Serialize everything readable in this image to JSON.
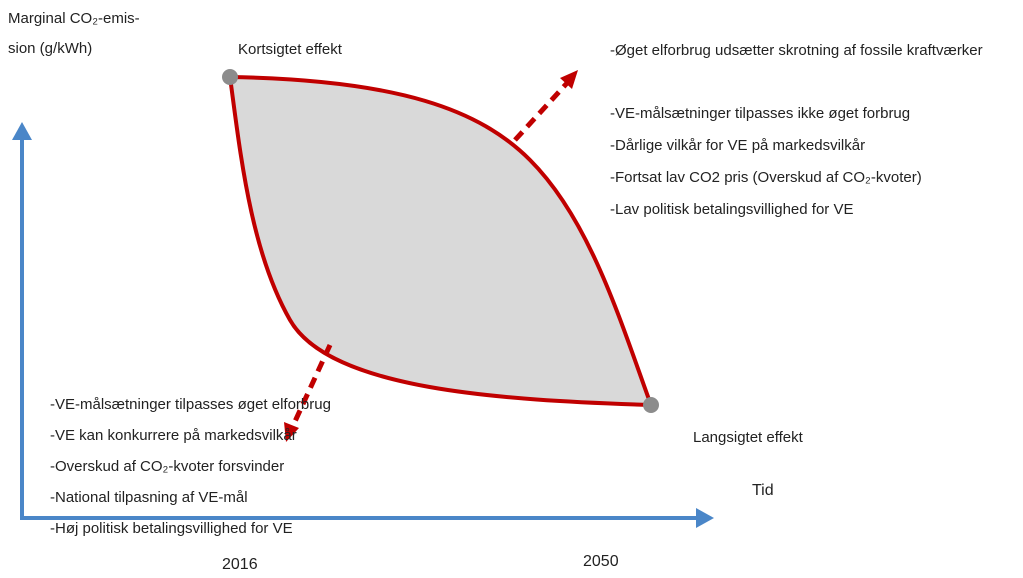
{
  "axis": {
    "y_label": [
      "Marginal CO₂-emis-",
      "sion (g/kWh)"
    ],
    "x_label": "Tid",
    "x_ticks": [
      "2016",
      "2050"
    ]
  },
  "points": [
    {
      "label": "Kortsigtet effekt"
    },
    {
      "label": "Langsigtet effekt"
    }
  ],
  "upper_list": [
    "-Øget elforbrug udsætter skrotning af fossile kraftværker",
    "-VE-målsætninger tilpasses ikke øget forbrug",
    "-Dårlige vilkår for VE på markedsvilkår",
    "-Fortsat lav CO2 pris (Overskud af CO₂-kvoter)",
    "-Lav politisk betalingsvillighed for VE"
  ],
  "lower_list": [
    "-VE-målsætninger tilpasses øget elforbrug",
    "-VE kan konkurrere på markedsvilkår",
    "-Overskud af CO₂-kvoter forsvinder",
    "-National tilpasning af VE-mål",
    "-Høj politisk betalingsvillighed for VE"
  ]
}
